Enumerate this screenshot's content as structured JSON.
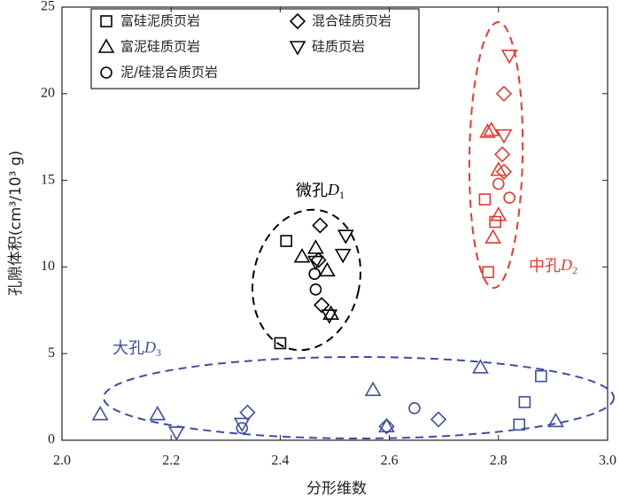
{
  "chart_data": {
    "type": "scatter",
    "xlabel": "分形维数",
    "ylabel": "孔隙体积(cm³/10³ g)",
    "xlim": [
      2.0,
      3.0
    ],
    "ylim": [
      0,
      25
    ],
    "xticks": [
      {
        "value": 2.0,
        "label": "2.0"
      },
      2.2,
      2.4,
      2.6,
      2.8,
      {
        "value": 3.0,
        "label": "3.0"
      }
    ],
    "yticks": [
      0,
      5,
      10,
      15,
      20,
      25
    ],
    "legend": "upper left",
    "series": [
      {
        "name": "富硅泥质页岩",
        "color": "#000000",
        "marker": "square",
        "x": [
          2.411,
          2.4,
          2.775,
          2.794,
          2.781,
          2.878,
          2.848,
          2.838
        ],
        "values": [
          11.5,
          5.6,
          13.9,
          12.6,
          9.7,
          3.7,
          2.2,
          0.9
        ],
        "point_colors": [
          "#000000",
          "#000000",
          "#e53a2f",
          "#e53a2f",
          "#e53a2f",
          "#3d4ea2",
          "#3d4ea2",
          "#3d4ea2"
        ]
      },
      {
        "name": "富泥硅质页岩",
        "color": "#000000",
        "marker": "triangle-up",
        "x": [
          2.44,
          2.465,
          2.486,
          2.493,
          2.78,
          2.787,
          2.8,
          2.8,
          2.79,
          2.07,
          2.175,
          2.57,
          2.767,
          2.905,
          2.595
        ],
        "values": [
          10.6,
          11.1,
          9.8,
          7.3,
          17.8,
          17.9,
          15.6,
          13.0,
          11.7,
          1.5,
          1.5,
          2.9,
          4.2,
          1.1,
          0.8
        ],
        "point_colors": [
          "#000000",
          "#000000",
          "#000000",
          "#000000",
          "#e53a2f",
          "#e53a2f",
          "#e53a2f",
          "#e53a2f",
          "#e53a2f",
          "#3d4ea2",
          "#3d4ea2",
          "#3d4ea2",
          "#3d4ea2",
          "#3d4ea2",
          "#3d4ea2"
        ]
      },
      {
        "name": "泥/硅混合质页岩",
        "color": "#000000",
        "marker": "circle",
        "x": [
          2.463,
          2.465,
          2.8,
          2.82,
          2.33,
          2.646
        ],
        "values": [
          9.6,
          8.7,
          14.8,
          14.0,
          0.7,
          1.85
        ],
        "point_colors": [
          "#000000",
          "#000000",
          "#e53a2f",
          "#e53a2f",
          "#3d4ea2",
          "#3d4ea2"
        ]
      },
      {
        "name": "混合硅质页岩",
        "color": "#000000",
        "marker": "diamond",
        "x": [
          2.473,
          2.47,
          2.476,
          2.81,
          2.807,
          2.81,
          2.34,
          2.595,
          2.69
        ],
        "values": [
          12.4,
          10.4,
          7.8,
          20.0,
          16.5,
          15.5,
          1.6,
          0.8,
          1.2
        ],
        "point_colors": [
          "#000000",
          "#000000",
          "#000000",
          "#e53a2f",
          "#e53a2f",
          "#e53a2f",
          "#3d4ea2",
          "#3d4ea2",
          "#3d4ea2"
        ]
      },
      {
        "name": "硅质页岩",
        "color": "#000000",
        "marker": "triangle-down",
        "x": [
          2.52,
          2.515,
          2.465,
          2.49,
          2.82,
          2.81,
          2.21,
          2.33
        ],
        "values": [
          11.8,
          10.7,
          10.3,
          7.2,
          22.2,
          17.6,
          0.45,
          0.95
        ],
        "point_colors": [
          "#000000",
          "#000000",
          "#000000",
          "#000000",
          "#e53a2f",
          "#e53a2f",
          "#3d4ea2",
          "#3d4ea2"
        ]
      }
    ],
    "annotations": [
      {
        "text": "微孔",
        "symbol": "D",
        "subscript": "1",
        "color": "#000000"
      },
      {
        "text": "中孔",
        "symbol": "D",
        "subscript": "2",
        "color": "#e53a2f"
      },
      {
        "text": "大孔",
        "symbol": "D",
        "subscript": "3",
        "color": "#3d4ea2"
      }
    ]
  }
}
